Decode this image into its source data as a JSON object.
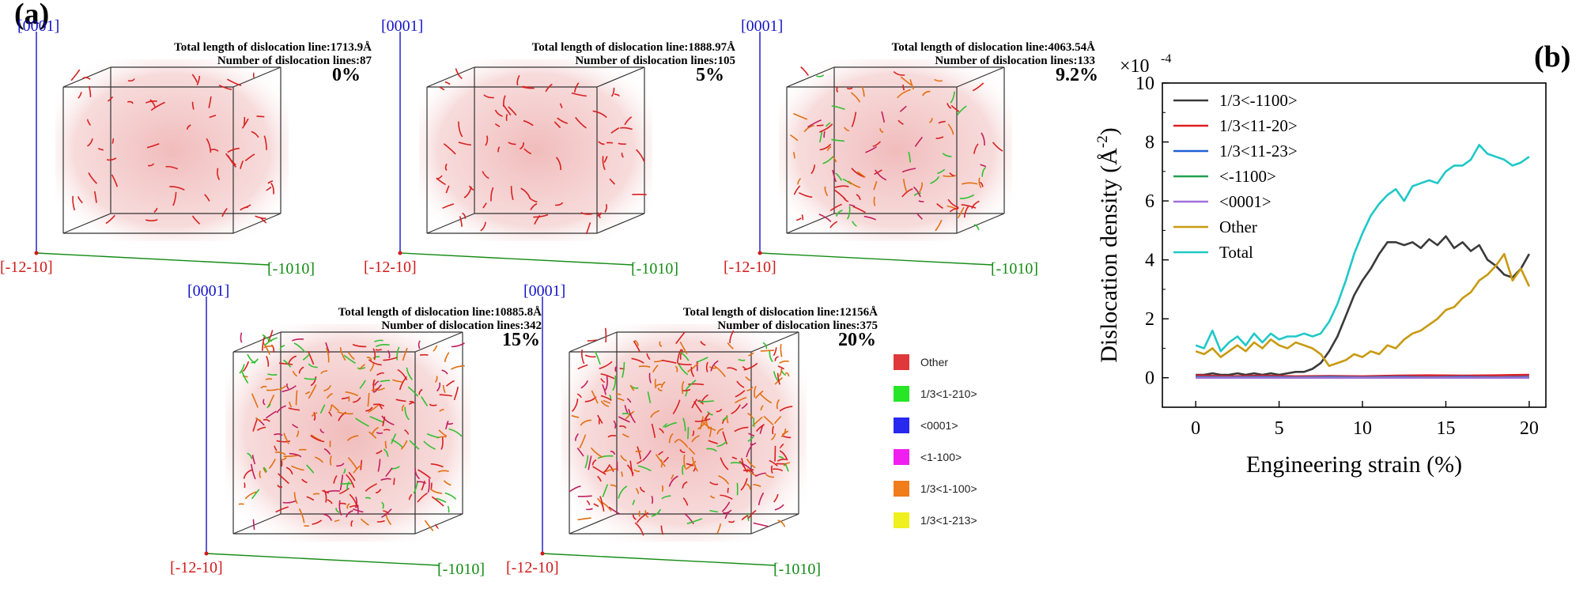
{
  "panel_a_label": "(a)",
  "panel_b_label": "(b)",
  "axes_labels": {
    "z": "[0001]",
    "y": "[-12-10]",
    "x": "[-1010]"
  },
  "snapshots": [
    {
      "strain": "0%",
      "length_text": "Total length of dislocation line:1713.9Å",
      "count_text": "Number of dislocation lines:87"
    },
    {
      "strain": "5%",
      "length_text": "Total length of dislocation line:1888.97Å",
      "count_text": "Number of dislocation lines:105"
    },
    {
      "strain": "9.2%",
      "length_text": "Total length of dislocation line:4063.54Å",
      "count_text": "Number of dislocation lines:133"
    },
    {
      "strain": "15%",
      "length_text": "Total length of dislocation line:10885.8Å",
      "count_text": "Number of dislocation lines:342"
    },
    {
      "strain": "20%",
      "length_text": "Total length of dislocation line:12156Å",
      "count_text": "Number of dislocation lines:375"
    }
  ],
  "structure_legend": [
    {
      "label": "Other",
      "color": "#e0383a"
    },
    {
      "label": "1/3<1-210>",
      "color": "#26e626"
    },
    {
      "label": "<0001>",
      "color": "#2828f0"
    },
    {
      "label": "<1-100>",
      "color": "#f01ef0"
    },
    {
      "label": "1/3<1-100>",
      "color": "#f07c1a"
    },
    {
      "label": "1/3<1-213>",
      "color": "#f0f01e"
    }
  ],
  "chart_data": {
    "type": "line",
    "xlabel": "Engineering strain (%)",
    "ylabel": "Dislocation density (Å",
    "ylabel_sup": "-2",
    "ylabel_end": ")",
    "y_multiplier": "×10",
    "y_multiplier_exp": "-4",
    "xlim": [
      -2,
      21
    ],
    "ylim": [
      -1,
      10
    ],
    "xticks": [
      0,
      5,
      10,
      15,
      20
    ],
    "yticks": [
      0,
      2,
      4,
      6,
      8,
      10
    ],
    "grid": false,
    "legend_position": "top-left",
    "series": [
      {
        "name": "1/3<-1100>",
        "color": "#3a3a3a",
        "x": [
          0,
          0.5,
          1,
          1.5,
          2,
          2.5,
          3,
          3.5,
          4,
          4.5,
          5,
          5.5,
          6,
          6.5,
          7,
          7.5,
          8,
          8.5,
          9,
          9.5,
          10,
          10.5,
          11,
          11.5,
          12,
          12.5,
          13,
          13.5,
          14,
          14.5,
          15,
          15.5,
          16,
          16.5,
          17,
          17.5,
          18,
          18.5,
          19,
          19.5,
          20
        ],
        "y": [
          0.1,
          0.1,
          0.15,
          0.1,
          0.1,
          0.15,
          0.1,
          0.15,
          0.1,
          0.15,
          0.1,
          0.15,
          0.2,
          0.2,
          0.3,
          0.5,
          0.9,
          1.4,
          2.1,
          2.8,
          3.3,
          3.7,
          4.2,
          4.6,
          4.6,
          4.5,
          4.6,
          4.4,
          4.7,
          4.5,
          4.8,
          4.4,
          4.6,
          4.3,
          4.5,
          4.0,
          3.8,
          3.5,
          3.4,
          3.7,
          4.2
        ]
      },
      {
        "name": "1/3<11-20>",
        "color": "#e02020",
        "x": [
          0,
          2,
          4,
          6,
          8,
          10,
          12,
          14,
          16,
          18,
          20
        ],
        "y": [
          0.08,
          0.05,
          0.07,
          0.05,
          0.06,
          0.05,
          0.07,
          0.08,
          0.07,
          0.08,
          0.1
        ]
      },
      {
        "name": "1/3<11-23>",
        "color": "#2060d8",
        "x": [
          0,
          2,
          4,
          6,
          8,
          10,
          12,
          14,
          16,
          18,
          20
        ],
        "y": [
          0.03,
          0.02,
          0.03,
          0.02,
          0.03,
          0.02,
          0.03,
          0.02,
          0.03,
          0.02,
          0.03
        ]
      },
      {
        "name": "<-1100>",
        "color": "#20a050",
        "x": [
          0,
          2,
          4,
          6,
          8,
          10,
          12,
          14,
          16,
          18,
          20
        ],
        "y": [
          0.01,
          0.01,
          0.01,
          0.01,
          0.01,
          0.01,
          0.01,
          0.01,
          0.01,
          0.01,
          0.01
        ]
      },
      {
        "name": "<0001>",
        "color": "#a070d8",
        "x": [
          0,
          2,
          4,
          6,
          8,
          10,
          12,
          14,
          16,
          18,
          20
        ],
        "y": [
          0.0,
          0.0,
          0.0,
          0.0,
          0.0,
          0.0,
          0.0,
          0.0,
          0.0,
          0.0,
          0.0
        ]
      },
      {
        "name": "Other",
        "color": "#c89a10",
        "x": [
          0,
          0.5,
          1,
          1.5,
          2,
          2.5,
          3,
          3.5,
          4,
          4.5,
          5,
          5.5,
          6,
          6.5,
          7,
          7.5,
          8,
          8.5,
          9,
          9.5,
          10,
          10.5,
          11,
          11.5,
          12,
          12.5,
          13,
          13.5,
          14,
          14.5,
          15,
          15.5,
          16,
          16.5,
          17,
          17.5,
          18,
          18.5,
          19,
          19.5,
          20
        ],
        "y": [
          0.9,
          0.8,
          1.0,
          0.7,
          0.9,
          1.1,
          0.9,
          1.2,
          1.0,
          1.3,
          1.1,
          1.0,
          1.2,
          1.1,
          1.0,
          0.8,
          0.4,
          0.5,
          0.6,
          0.8,
          0.7,
          0.9,
          0.8,
          1.1,
          1.0,
          1.3,
          1.5,
          1.6,
          1.8,
          2.0,
          2.3,
          2.4,
          2.7,
          2.9,
          3.3,
          3.5,
          3.8,
          4.2,
          3.3,
          3.7,
          3.1
        ]
      },
      {
        "name": "Total",
        "color": "#20c8c8",
        "x": [
          0,
          0.5,
          1,
          1.5,
          2,
          2.5,
          3,
          3.5,
          4,
          4.5,
          5,
          5.5,
          6,
          6.5,
          7,
          7.5,
          8,
          8.5,
          9,
          9.5,
          10,
          10.5,
          11,
          11.5,
          12,
          12.5,
          13,
          13.5,
          14,
          14.5,
          15,
          15.5,
          16,
          16.5,
          17,
          17.5,
          18,
          18.5,
          19,
          19.5,
          20
        ],
        "y": [
          1.1,
          1.0,
          1.6,
          0.9,
          1.2,
          1.4,
          1.1,
          1.5,
          1.2,
          1.5,
          1.3,
          1.4,
          1.4,
          1.5,
          1.4,
          1.5,
          1.9,
          2.5,
          3.3,
          4.2,
          4.9,
          5.5,
          5.9,
          6.2,
          6.4,
          6.0,
          6.5,
          6.6,
          6.7,
          6.6,
          7.0,
          7.2,
          7.2,
          7.4,
          7.9,
          7.6,
          7.5,
          7.4,
          7.2,
          7.3,
          7.5
        ]
      }
    ]
  }
}
